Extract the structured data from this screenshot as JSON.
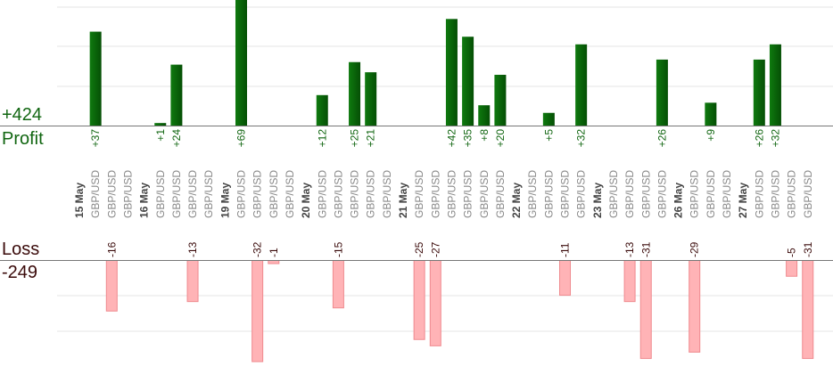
{
  "summary": {
    "profit_label": "Profit",
    "profit_total": "+424",
    "loss_label": "Loss",
    "loss_total": "-249"
  },
  "colors": {
    "profit_bar": "#0b6b0b",
    "profit_text": "#116611",
    "loss_bar": "#ffb3b6",
    "loss_bar_edge": "#ef8a8f",
    "loss_text": "#3a0a0a",
    "axis": "#777777",
    "grid": "#e6e6e6",
    "slot_text": "#888888",
    "date_text": "#444444"
  },
  "chart_data": {
    "type": "bar",
    "slot_label": "GBP/USD",
    "ylim_profit": [
      0,
      50
    ],
    "ylim_loss": [
      -35,
      0
    ],
    "dates": [
      {
        "label": "15 May",
        "slot": 0
      },
      {
        "label": "16 May",
        "slot": 4
      },
      {
        "label": "19 May",
        "slot": 9
      },
      {
        "label": "20 May",
        "slot": 14
      },
      {
        "label": "21 May",
        "slot": 20
      },
      {
        "label": "22 May",
        "slot": 27
      },
      {
        "label": "23 May",
        "slot": 32
      },
      {
        "label": "26 May",
        "slot": 37
      },
      {
        "label": "27 May",
        "slot": 41
      }
    ],
    "slots_count": 46,
    "blank_slots": [
      0,
      4,
      9,
      14,
      20,
      27,
      32,
      37,
      41
    ],
    "profits": [
      {
        "slot": 1,
        "value": 37,
        "label": "+37"
      },
      {
        "slot": 5,
        "value": 1,
        "label": "+1"
      },
      {
        "slot": 6,
        "value": 24,
        "label": "+24"
      },
      {
        "slot": 10,
        "value": 69,
        "label": "+69"
      },
      {
        "slot": 15,
        "value": 12,
        "label": "+12"
      },
      {
        "slot": 17,
        "value": 25,
        "label": "+25"
      },
      {
        "slot": 18,
        "value": 21,
        "label": "+21"
      },
      {
        "slot": 23,
        "value": 42,
        "label": "+42"
      },
      {
        "slot": 24,
        "value": 35,
        "label": "+35"
      },
      {
        "slot": 25,
        "value": 8,
        "label": "+8"
      },
      {
        "slot": 26,
        "value": 20,
        "label": "+20"
      },
      {
        "slot": 29,
        "value": 5,
        "label": "+5"
      },
      {
        "slot": 31,
        "value": 32,
        "label": "+32"
      },
      {
        "slot": 36,
        "value": 26,
        "label": "+26"
      },
      {
        "slot": 39,
        "value": 9,
        "label": "+9"
      },
      {
        "slot": 42,
        "value": 26,
        "label": "+26"
      },
      {
        "slot": 43,
        "value": 32,
        "label": "+32"
      }
    ],
    "losses": [
      {
        "slot": 2,
        "value": -16,
        "label": "-16"
      },
      {
        "slot": 7,
        "value": -13,
        "label": "-13"
      },
      {
        "slot": 11,
        "value": -32,
        "label": "-32"
      },
      {
        "slot": 12,
        "value": -1,
        "label": "-1"
      },
      {
        "slot": 16,
        "value": -15,
        "label": "-15"
      },
      {
        "slot": 21,
        "value": -25,
        "label": "-25"
      },
      {
        "slot": 22,
        "value": -27,
        "label": "-27"
      },
      {
        "slot": 30,
        "value": -11,
        "label": "-11"
      },
      {
        "slot": 34,
        "value": -13,
        "label": "-13"
      },
      {
        "slot": 35,
        "value": -31,
        "label": "-31"
      },
      {
        "slot": 38,
        "value": -29,
        "label": "-29"
      },
      {
        "slot": 44,
        "value": -5,
        "label": "-5"
      },
      {
        "slot": 45,
        "value": -31,
        "label": "-31"
      }
    ]
  }
}
